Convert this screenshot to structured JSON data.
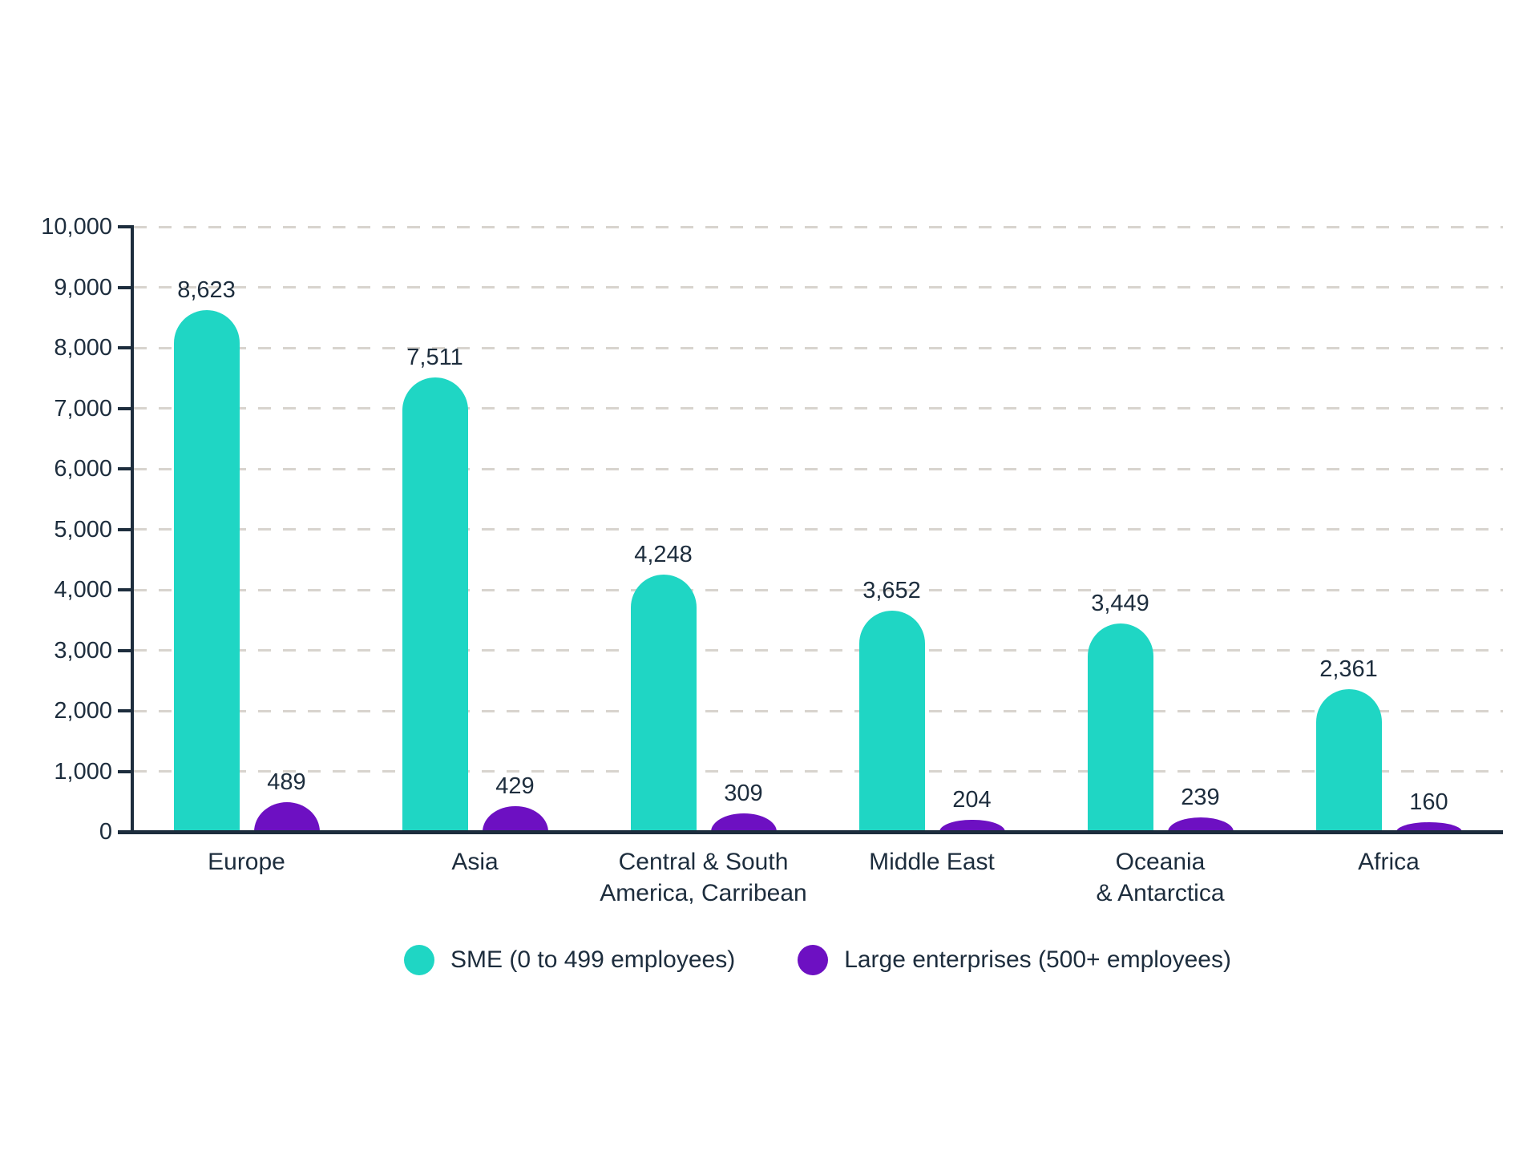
{
  "chart_data": {
    "type": "bar",
    "title": "",
    "xlabel": "",
    "ylabel": "",
    "ylim": [
      0,
      10000
    ],
    "ytick_step": 1000,
    "yticks": [
      "0",
      "1,000",
      "2,000",
      "3,000",
      "4,000",
      "5,000",
      "6,000",
      "7,000",
      "8,000",
      "9,000",
      "10,000"
    ],
    "grid": "horizontal-dashed",
    "legend_position": "bottom-center",
    "categories": [
      "Europe",
      "Asia",
      "Central & South America, Carribean",
      "Middle East",
      "Oceania & Antarctica",
      "Africa"
    ],
    "categories_lines": [
      [
        "Europe"
      ],
      [
        "Asia"
      ],
      [
        "Central & South",
        "America, Carribean"
      ],
      [
        "Middle East"
      ],
      [
        "Oceania",
        "& Antarctica"
      ],
      [
        "Africa"
      ]
    ],
    "series": [
      {
        "name": "SME (0 to 499 employees)",
        "color": "#1fd6c4",
        "values": [
          8623,
          7511,
          4248,
          3652,
          3449,
          2361
        ],
        "labels": [
          "8,623",
          "7,511",
          "4,248",
          "3,652",
          "3,449",
          "2,361"
        ]
      },
      {
        "name": "Large enterprises (500+ employees)",
        "color": "#6d10c2",
        "values": [
          489,
          429,
          309,
          204,
          239,
          160
        ],
        "labels": [
          "489",
          "429",
          "309",
          "204",
          "239",
          "160"
        ]
      }
    ]
  },
  "style": {
    "background": "#ffffff",
    "axis_color": "#1d2d3d",
    "text_color": "#1d2d3d",
    "gridline_color": "#d8d4ce"
  }
}
